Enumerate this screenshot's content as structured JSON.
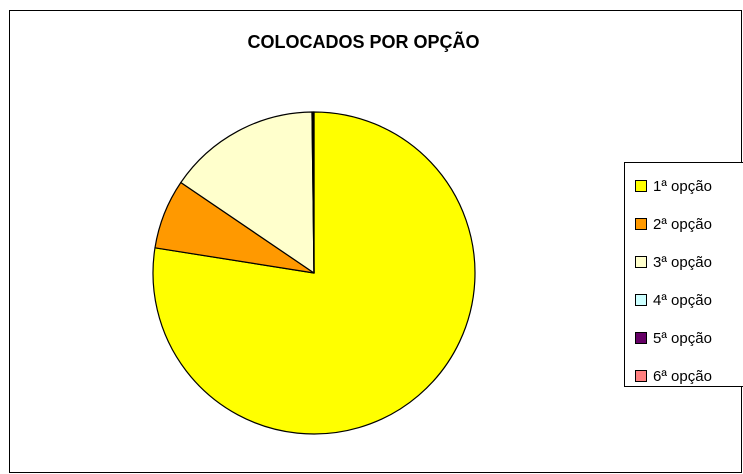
{
  "chart_data": {
    "type": "pie",
    "title": "COLOCADOS POR OPÇÃO",
    "categories": [
      "1ª opção",
      "2ª opção",
      "3ª opção",
      "4ª opção",
      "5ª opção",
      "6ª opção"
    ],
    "values": [
      77.5,
      7.0,
      15.3,
      0.1,
      0.05,
      0.05
    ],
    "colors": [
      "#FFFF00",
      "#FF9900",
      "#FFFFCC",
      "#CCFFFF",
      "#660066",
      "#FF8080"
    ],
    "start_angle_deg": 0,
    "direction": "clockwise",
    "legend_position": "right"
  }
}
